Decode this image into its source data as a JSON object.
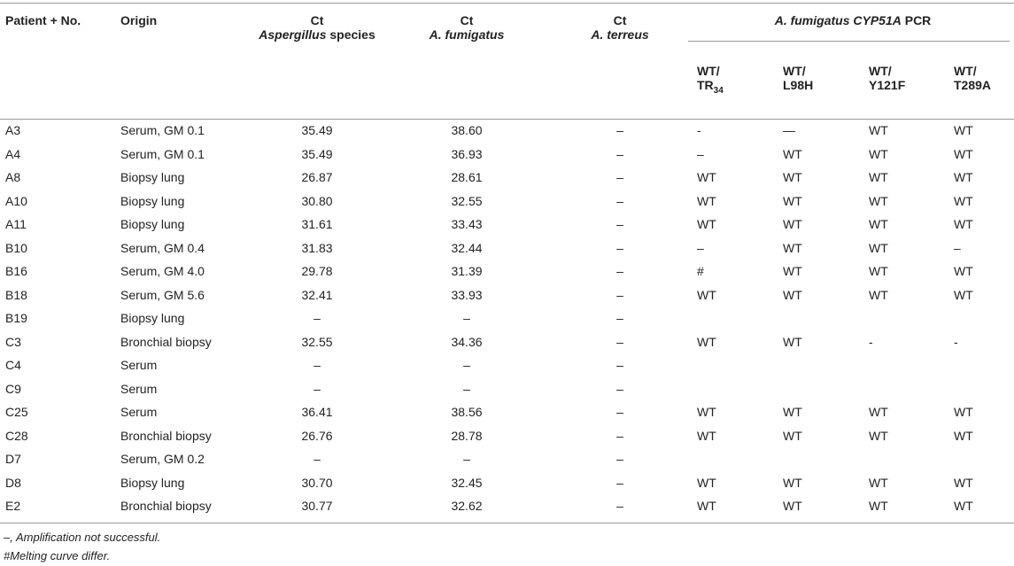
{
  "table": {
    "header": {
      "patient": "Patient + No.",
      "origin": "Origin",
      "ct_asp": {
        "label": "Ct",
        "italic": "Aspergillus",
        "rest": " species"
      },
      "ct_fum": {
        "label": "Ct",
        "italic": "A. fumigatus"
      },
      "ct_ter": {
        "label": "Ct",
        "italic": "A. terreus"
      },
      "pcr": {
        "italic": "A. fumigatus CYP51A",
        "rest": " PCR"
      },
      "sub": [
        {
          "top": "WT/",
          "main": "TR",
          "sub": "34"
        },
        {
          "top": "WT/",
          "main": "L98H"
        },
        {
          "top": "WT/",
          "main": "Y121F"
        },
        {
          "top": "WT/",
          "main": "T289A"
        }
      ]
    },
    "rows": [
      [
        "A3",
        "Serum, GM 0.1",
        "35.49",
        "38.60",
        "–",
        "-",
        "—",
        "WT",
        "WT"
      ],
      [
        "A4",
        "Serum, GM 0.1",
        "35.49",
        "36.93",
        "–",
        "–",
        "WT",
        "WT",
        "WT"
      ],
      [
        "A8",
        "Biopsy lung",
        "26.87",
        "28.61",
        "–",
        "WT",
        "WT",
        "WT",
        "WT"
      ],
      [
        "A10",
        "Biopsy lung",
        "30.80",
        "32.55",
        "–",
        "WT",
        "WT",
        "WT",
        "WT"
      ],
      [
        "A11",
        "Biopsy lung",
        "31.61",
        "33.43",
        "–",
        "WT",
        "WT",
        "WT",
        "WT"
      ],
      [
        "B10",
        "Serum, GM 0.4",
        "31.83",
        "32.44",
        "–",
        "–",
        "WT",
        "WT",
        "–"
      ],
      [
        "B16",
        "Serum, GM 4.0",
        "29.78",
        "31.39",
        "–",
        "#",
        "WT",
        "WT",
        "WT"
      ],
      [
        "B18",
        "Serum, GM 5.6",
        "32.41",
        "33.93",
        "–",
        "WT",
        "WT",
        "WT",
        "WT"
      ],
      [
        "B19",
        "Biopsy lung",
        "–",
        "–",
        "–"
      ],
      [
        "C3",
        "Bronchial biopsy",
        "32.55",
        "34.36",
        "–",
        "WT",
        "WT",
        "-",
        "-"
      ],
      [
        "C4",
        "Serum",
        "–",
        "–",
        "–"
      ],
      [
        "C9",
        "Serum",
        "–",
        "–",
        "–"
      ],
      [
        "C25",
        "Serum",
        "36.41",
        "38.56",
        "–",
        "WT",
        "WT",
        "WT",
        "WT"
      ],
      [
        "C28",
        "Bronchial biopsy",
        "26.76",
        "28.78",
        "–",
        "WT",
        "WT",
        "WT",
        "WT"
      ],
      [
        "D7",
        "Serum, GM 0.2",
        "–",
        "–",
        "–"
      ],
      [
        "D8",
        "Biopsy lung",
        "30.70",
        "32.45",
        "–",
        "WT",
        "WT",
        "WT",
        "WT"
      ],
      [
        "E2",
        "Bronchial biopsy",
        "30.77",
        "32.62",
        "–",
        "WT",
        "WT",
        "WT",
        "WT"
      ]
    ],
    "footnotes": [
      "–, Amplification not successful.",
      "#Melting curve differ."
    ]
  }
}
